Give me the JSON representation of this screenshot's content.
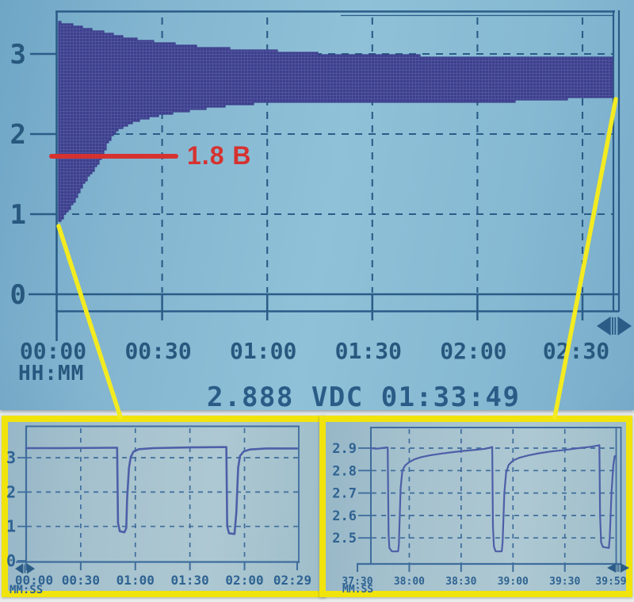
{
  "colors": {
    "lcd_bg": "#87b9d2",
    "lcd_line": "#2b5c88",
    "lcd_text": "#28587e",
    "band": "#3c3f8c",
    "band_texture": "#6a6fb4",
    "inset_bg": "#a6c2ce",
    "inset_line": "#3f6d9d",
    "inset_trace": "#4d5fa8",
    "inset_text": "#2f6392",
    "annotation_red": "#d63230",
    "callout_yellow": "#f3eb21",
    "frame_yellow": "#f0e40c",
    "mat_white": "#e9edec"
  },
  "icons": {
    "main_scroll": "h-scroll-arrows-icon",
    "inset_left_scroll": "h-scroll-arrows-icon",
    "inset_right_scroll": "h-scroll-arrows-icon"
  },
  "chart_data": [
    {
      "id": "main-envelope",
      "type": "area",
      "title": "",
      "xlabel": "HH:MM",
      "ylabel": "",
      "status": "2.888 VDC 01:33:49",
      "annotation_line": {
        "label": "1.8 В",
        "y_value": 1.8,
        "color": "#d63230"
      },
      "grid": true,
      "ylim": [
        -0.26,
        3.5
      ],
      "x_range_minutes": [
        0,
        159
      ],
      "x_ticks": [
        {
          "label": "00:00",
          "minutes": 0
        },
        {
          "label": "00:30",
          "minutes": 30
        },
        {
          "label": "01:00",
          "minutes": 60
        },
        {
          "label": "01:30",
          "minutes": 90
        },
        {
          "label": "02:00",
          "minutes": 120
        },
        {
          "label": "02:30",
          "minutes": 150
        }
      ],
      "y_ticks": [
        {
          "label": "3",
          "value": 3
        },
        {
          "label": "2",
          "value": 2
        },
        {
          "label": "1",
          "value": 1
        },
        {
          "label": "0",
          "value": 0
        }
      ],
      "band": {
        "minutes": [
          0,
          2,
          4,
          6,
          8,
          10,
          12,
          14,
          16,
          19,
          23,
          28,
          34,
          40,
          47,
          55,
          65,
          80,
          95,
          112,
          130,
          150,
          159
        ],
        "max_v": [
          3.4,
          3.38,
          3.36,
          3.34,
          3.32,
          3.3,
          3.28,
          3.26,
          3.24,
          3.21,
          3.18,
          3.15,
          3.12,
          3.09,
          3.07,
          3.05,
          3.03,
          2.99,
          2.98,
          2.97,
          2.96,
          2.95,
          2.95
        ],
        "min_v": [
          0.88,
          1.0,
          1.12,
          1.28,
          1.43,
          1.54,
          1.68,
          1.88,
          2.02,
          2.1,
          2.17,
          2.23,
          2.27,
          2.31,
          2.35,
          2.38,
          2.4,
          2.41,
          2.39,
          2.4,
          2.41,
          2.45,
          2.47
        ]
      }
    },
    {
      "id": "inset-zoom-start",
      "type": "line",
      "xlabel": "MM:SS",
      "ylim": [
        -0.05,
        3.93
      ],
      "x_ticks": [
        {
          "label": "00:00",
          "seconds": 0
        },
        {
          "label": "00:30",
          "seconds": 30
        },
        {
          "label": "01:00",
          "seconds": 60
        },
        {
          "label": "01:30",
          "seconds": 90
        },
        {
          "label": "02:00",
          "seconds": 120
        },
        {
          "label": "02:29",
          "seconds": 149
        }
      ],
      "y_ticks": [
        {
          "label": "3",
          "value": 3
        },
        {
          "label": "2",
          "value": 2
        },
        {
          "label": "1",
          "value": 1
        },
        {
          "label": "0",
          "value": 0
        }
      ],
      "points_s_v": [
        [
          0,
          3.28
        ],
        [
          20,
          3.28
        ],
        [
          48,
          3.29
        ],
        [
          50,
          3.29
        ],
        [
          50.5,
          1.1
        ],
        [
          51.5,
          0.86
        ],
        [
          54,
          0.83
        ],
        [
          55,
          0.95
        ],
        [
          55.5,
          1.8
        ],
        [
          56.5,
          2.7
        ],
        [
          57.5,
          3.02
        ],
        [
          59,
          3.18
        ],
        [
          62,
          3.25
        ],
        [
          70,
          3.28
        ],
        [
          90,
          3.3
        ],
        [
          108,
          3.31
        ],
        [
          110,
          3.31
        ],
        [
          110.5,
          1.0
        ],
        [
          111.5,
          0.8
        ],
        [
          114.5,
          0.78
        ],
        [
          115.5,
          1.4
        ],
        [
          116.5,
          2.7
        ],
        [
          117.5,
          3.05
        ],
        [
          119.5,
          3.18
        ],
        [
          123,
          3.24
        ],
        [
          132,
          3.27
        ],
        [
          149,
          3.27
        ]
      ]
    },
    {
      "id": "inset-zoom-end",
      "type": "line",
      "xlabel": "MM:SS",
      "ylim": [
        2.39,
        3.01
      ],
      "x_ticks": [
        {
          "label": "37:30",
          "seconds": 2250
        },
        {
          "label": "38:00",
          "seconds": 2280
        },
        {
          "label": "38:30",
          "seconds": 2310
        },
        {
          "label": "39:00",
          "seconds": 2340
        },
        {
          "label": "39:30",
          "seconds": 2370
        },
        {
          "label": "39:59",
          "seconds": 2399
        }
      ],
      "y_ticks": [
        {
          "label": "2.9",
          "value": 2.9
        },
        {
          "label": "2.8",
          "value": 2.8
        },
        {
          "label": "2.7",
          "value": 2.7
        },
        {
          "label": "2.6",
          "value": 2.6
        },
        {
          "label": "2.5",
          "value": 2.5
        }
      ],
      "points_s_v": [
        [
          2258,
          2.9
        ],
        [
          2261,
          2.897
        ],
        [
          2264,
          2.9
        ],
        [
          2266.5,
          2.903
        ],
        [
          2267.5,
          2.903
        ],
        [
          2268,
          2.52
        ],
        [
          2268.5,
          2.455
        ],
        [
          2270,
          2.44
        ],
        [
          2273.5,
          2.44
        ],
        [
          2274,
          2.47
        ],
        [
          2275,
          2.72
        ],
        [
          2276,
          2.8
        ],
        [
          2277.5,
          2.822
        ],
        [
          2280,
          2.838
        ],
        [
          2283,
          2.85
        ],
        [
          2287,
          2.86
        ],
        [
          2292,
          2.868
        ],
        [
          2298,
          2.875
        ],
        [
          2305,
          2.882
        ],
        [
          2312,
          2.888
        ],
        [
          2319,
          2.893
        ],
        [
          2324,
          2.897
        ],
        [
          2327,
          2.903
        ],
        [
          2328,
          2.905
        ],
        [
          2328.4,
          2.55
        ],
        [
          2329,
          2.46
        ],
        [
          2330,
          2.44
        ],
        [
          2333.5,
          2.44
        ],
        [
          2334,
          2.48
        ],
        [
          2335,
          2.7
        ],
        [
          2336,
          2.79
        ],
        [
          2337.5,
          2.825
        ],
        [
          2340,
          2.845
        ],
        [
          2344,
          2.858
        ],
        [
          2349,
          2.868
        ],
        [
          2355,
          2.877
        ],
        [
          2362,
          2.885
        ],
        [
          2370,
          2.892
        ],
        [
          2378,
          2.9
        ],
        [
          2385,
          2.906
        ],
        [
          2389.5,
          2.912
        ],
        [
          2390,
          2.913
        ],
        [
          2390.4,
          2.6
        ],
        [
          2391,
          2.48
        ],
        [
          2392,
          2.46
        ],
        [
          2395.5,
          2.455
        ],
        [
          2396,
          2.5
        ],
        [
          2397,
          2.7
        ],
        [
          2398,
          2.82
        ],
        [
          2398.8,
          2.862
        ],
        [
          2399,
          2.865
        ]
      ]
    }
  ]
}
